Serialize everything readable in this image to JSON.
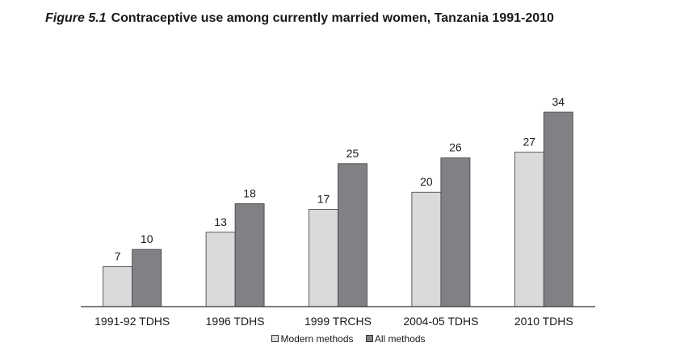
{
  "title": {
    "figure_label": "Figure 5.1",
    "text": "Contraceptive use among currently married women, Tanzania 1991-2010"
  },
  "chart_data": {
    "type": "bar",
    "categories": [
      "1991-92 TDHS",
      "1996 TDHS",
      "1999 TRCHS",
      "2004-05 TDHS",
      "2010 TDHS"
    ],
    "series": [
      {
        "name": "Modern methods",
        "values": [
          7,
          13,
          17,
          20,
          27
        ],
        "color": "#d9dadb"
      },
      {
        "name": "All methods",
        "values": [
          10,
          18,
          25,
          26,
          34
        ],
        "color": "#808184"
      }
    ],
    "ylim": [
      0,
      34
    ],
    "grid": false,
    "legend_position": "bottom"
  },
  "legend": {
    "modern_label": "Modern methods",
    "all_label": "All methods"
  }
}
